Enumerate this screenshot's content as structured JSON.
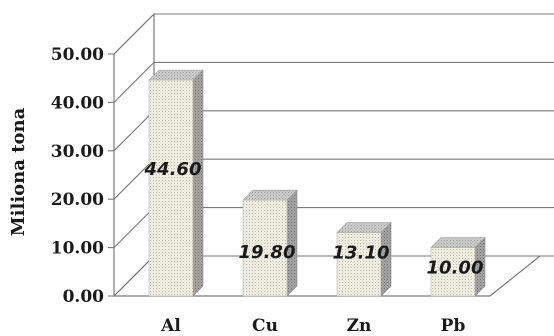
{
  "chart_data": {
    "type": "bar",
    "categories": [
      "Al",
      "Cu",
      "Zn",
      "Pb"
    ],
    "values": [
      44.6,
      19.8,
      13.1,
      10.0
    ],
    "data_labels": [
      "44.60",
      "19.80",
      "13.10",
      "10.00"
    ],
    "ylabel": "Miliona tona",
    "ylim": [
      0,
      50
    ],
    "yticks": [
      "0.00",
      "10.00",
      "20.00",
      "30.00",
      "40.00",
      "50.00"
    ],
    "grid": true,
    "style": "3d",
    "colors": {
      "bar_face": "#f2efe4",
      "bar_side": "#9a9a9a",
      "bar_top": "#c4c4c4",
      "grid": "#7a7a7a"
    }
  }
}
